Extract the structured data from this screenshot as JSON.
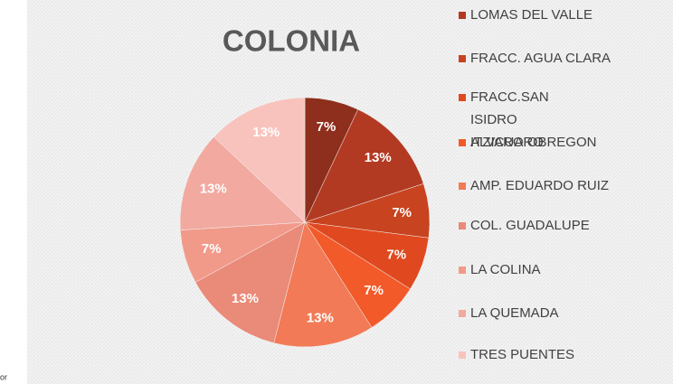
{
  "chart_data": {
    "type": "pie",
    "title": "COLONIA",
    "categories": [
      null,
      "LOMAS DEL VALLE",
      "FRACC. AGUA CLARA",
      "FRACC.SAN ISIDRO ITZICUARO",
      "ALVARO OBREGON",
      "AMP. EDUARDO RUIZ",
      "COL. GUADALUPE",
      "LA COLINA",
      "LA QUEMADA",
      "TRES PUENTES"
    ],
    "values": [
      7,
      13,
      7,
      7,
      7,
      13,
      13,
      7,
      13,
      13
    ],
    "value_labels": [
      "7%",
      "13%",
      "7%",
      "7%",
      "7%",
      "13%",
      "13%",
      "7%",
      "13%",
      "13%"
    ],
    "colors": [
      "#8e2e1c",
      "#b33a22",
      "#c8431f",
      "#e0491f",
      "#f25a2a",
      "#f27a56",
      "#ea8a78",
      "#f19a8a",
      "#f2a9a0",
      "#f8c3bd"
    ],
    "legend": "right",
    "footnote": "or"
  }
}
